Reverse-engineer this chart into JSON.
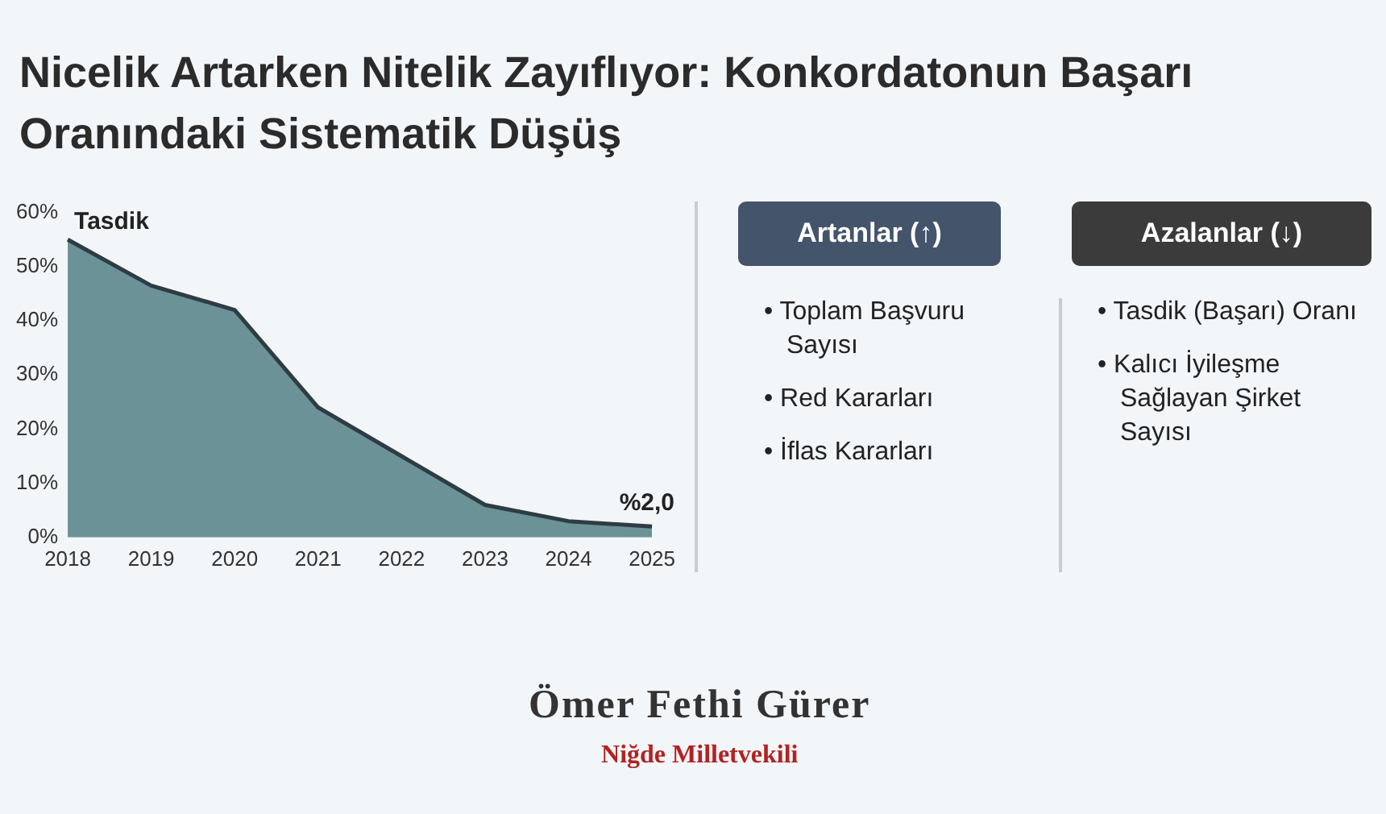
{
  "chart_data": [
    {
      "type": "area",
      "title": "Nicelik Artarken Nitelik Zayıflıyor: Konkordatonun Başarı Oranındaki Sistematik Düşüş",
      "categories": [
        "2018",
        "2019",
        "2020",
        "2021",
        "2022",
        "2023",
        "2024",
        "2025"
      ],
      "series": [
        {
          "name": "Tasdik",
          "color": "#6b9296",
          "values": [
            55,
            46.5,
            42,
            24,
            15,
            6,
            3,
            2
          ]
        }
      ],
      "ylim": [
        0,
        60
      ],
      "yticks": [
        {
          "value": 0,
          "label": "0%"
        },
        {
          "value": 10,
          "label": "10%"
        },
        {
          "value": 20,
          "label": "20%"
        },
        {
          "value": 30,
          "label": "30%"
        },
        {
          "value": 40,
          "label": "40%"
        },
        {
          "value": 50,
          "label": "50%"
        },
        {
          "value": 60,
          "label": "60%"
        }
      ],
      "grid": false,
      "legend": false,
      "annotations": [
        {
          "text": "%2,0",
          "x": "2025",
          "y": 2
        },
        "Ömer Fethi Gürer",
        "Niğde Milletvekili"
      ]
    },
    {
      "type": "other",
      "title": "Artanlar (↑)",
      "annotations": [
        "• Toplam Başvuru Sayısı",
        "• Red Kararları",
        "• İflas Kararları"
      ]
    },
    {
      "type": "other",
      "title": "Azalanlar (↓)",
      "annotations": [
        "• Tasdik (Başarı) Oranı",
        "• Kalıcı İyileşme Sağlayan Şirket Sayısı"
      ]
    }
  ]
}
